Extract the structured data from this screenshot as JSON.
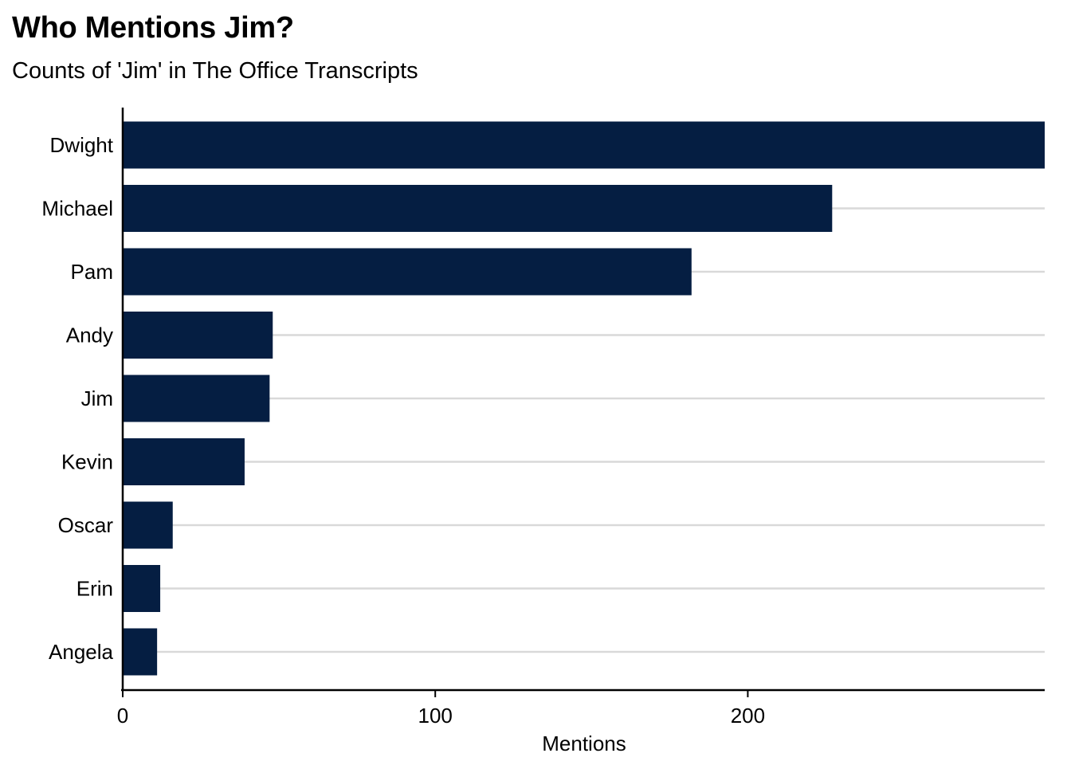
{
  "chart_data": {
    "type": "bar",
    "orientation": "horizontal",
    "title": "Who Mentions Jim?",
    "subtitle": "Counts of 'Jim' in The Office Transcripts",
    "xlabel": "Mentions",
    "ylabel": "",
    "categories": [
      "Dwight",
      "Michael",
      "Pam",
      "Andy",
      "Jim",
      "Kevin",
      "Oscar",
      "Erin",
      "Angela"
    ],
    "values": [
      295,
      227,
      182,
      48,
      47,
      39,
      16,
      12,
      11
    ],
    "xlim": [
      0,
      295
    ],
    "xticks": [
      0,
      100,
      200
    ],
    "xtick_labels": [
      "0",
      "100",
      "200"
    ],
    "bar_color": "#051e42",
    "grid": "horizontal-major",
    "grid_color": "#d9d9d9",
    "legend": "none"
  }
}
